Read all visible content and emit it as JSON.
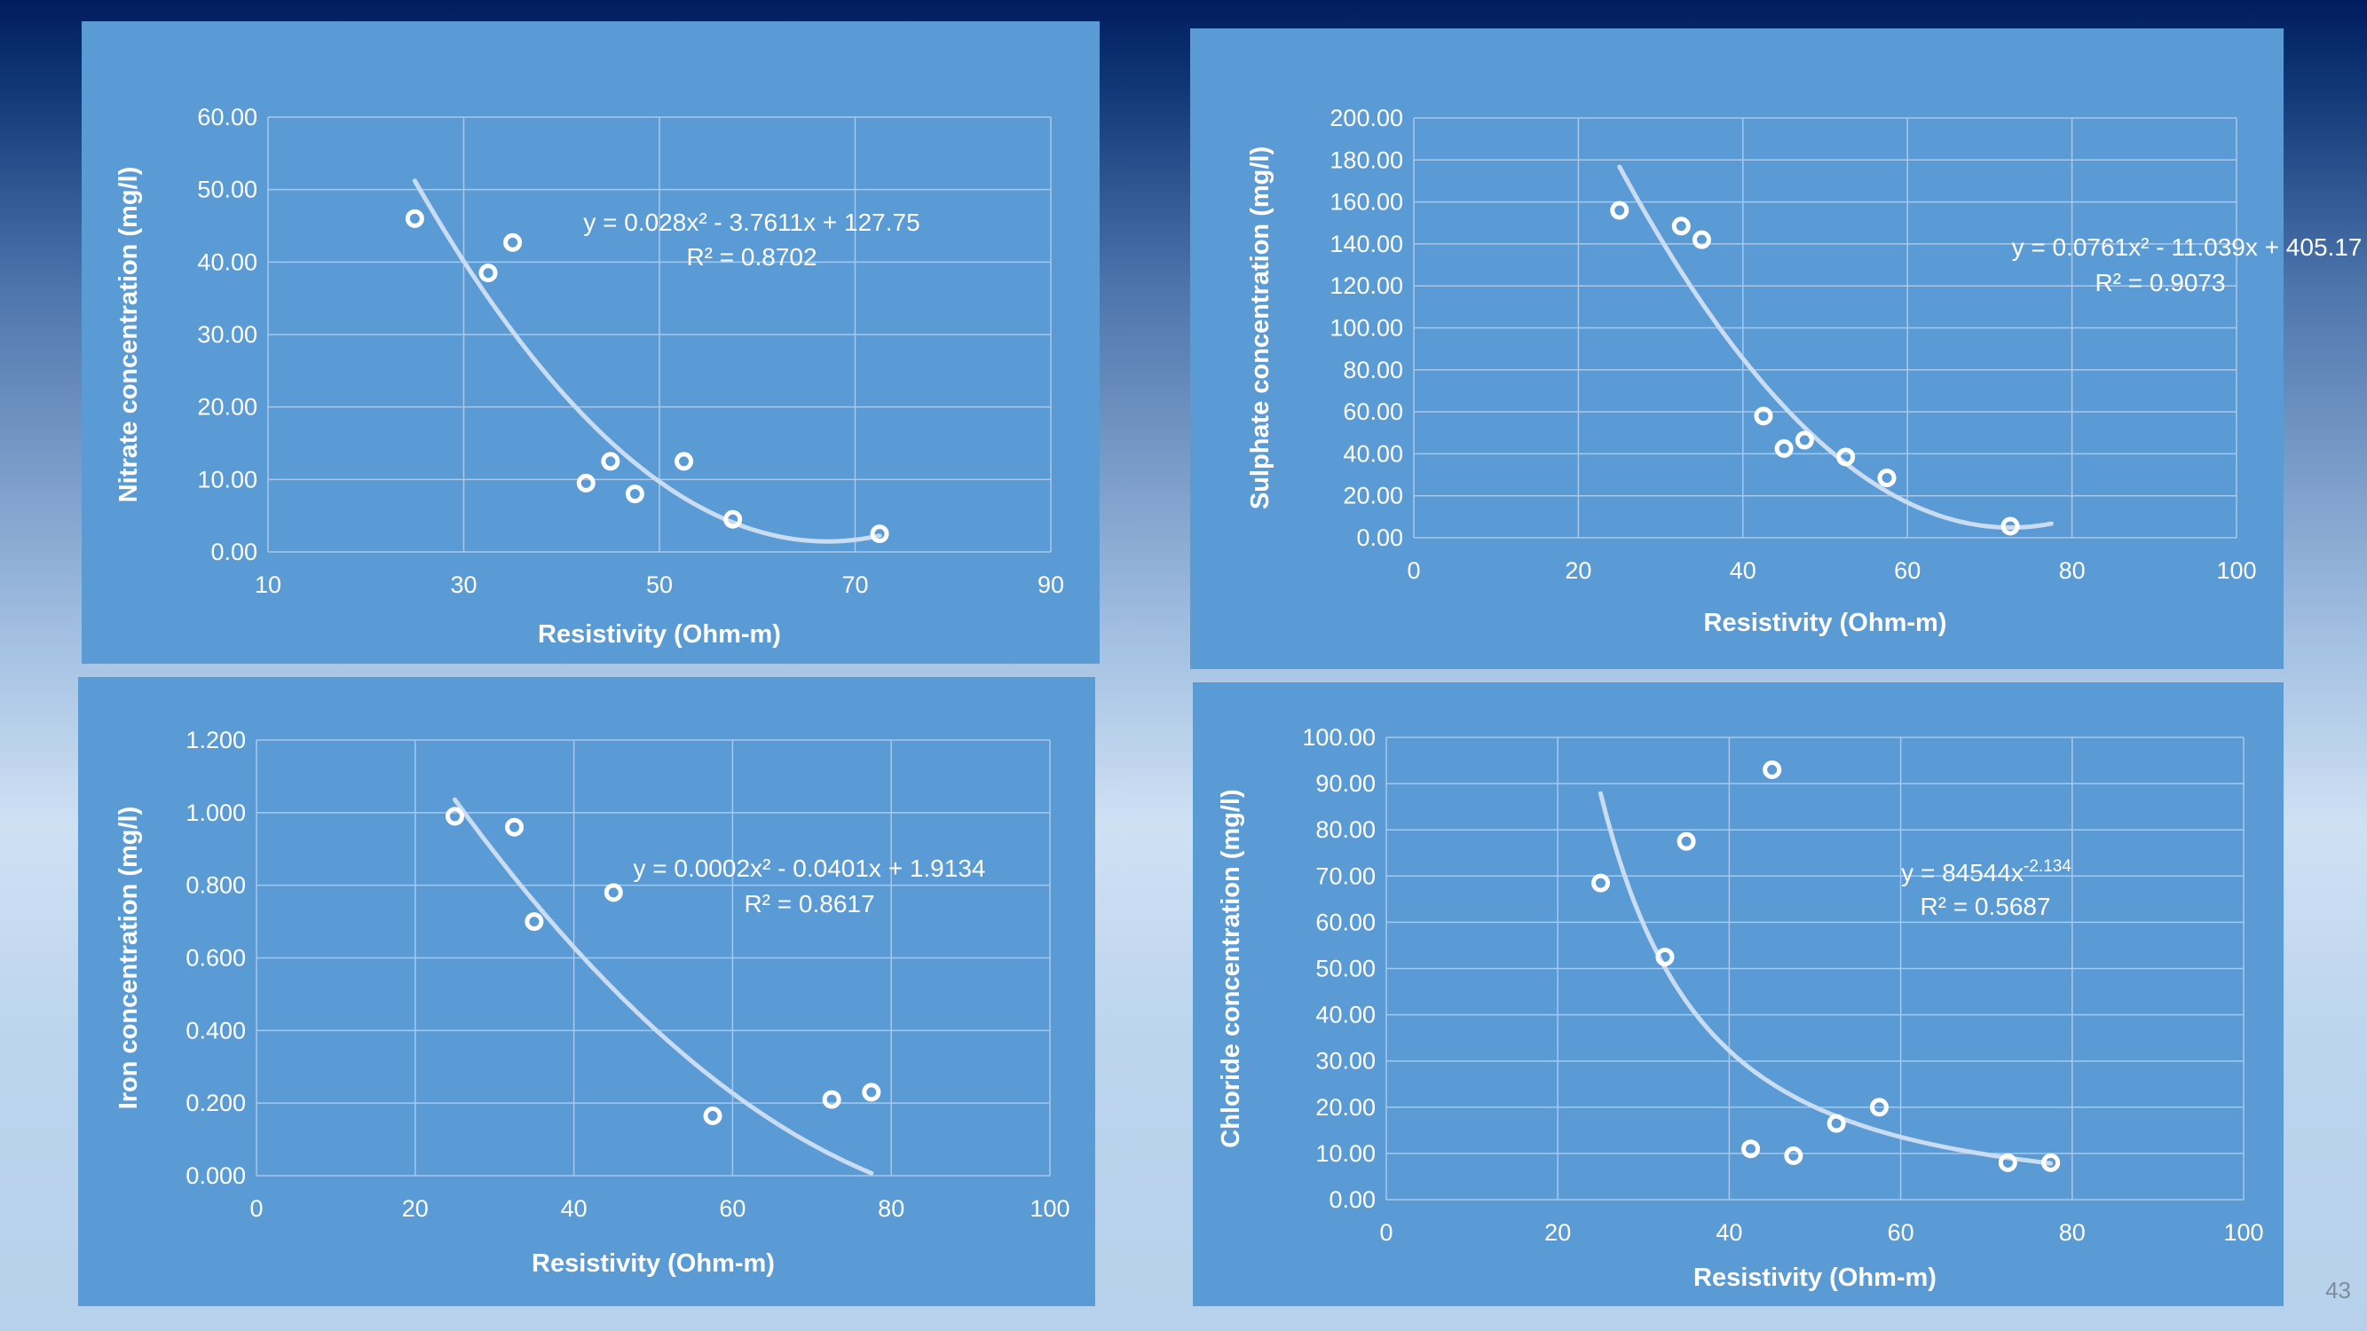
{
  "slide": {
    "page_number": "43"
  },
  "colors": {
    "panel": "#5b9bd5",
    "grid": "#a9c8ea",
    "text": "#ffffff",
    "trend": "#c9dcf2"
  },
  "chart_data": [
    {
      "type": "scatter",
      "xlabel": "Resistivity (Ohm-m)",
      "ylabel": "Nitrate concentration (mg/l)",
      "xlim": [
        10,
        90
      ],
      "ylim": [
        0,
        60
      ],
      "xticks": [
        "10",
        "30",
        "50",
        "70",
        "90"
      ],
      "yticks": [
        "0.00",
        "10.00",
        "20.00",
        "30.00",
        "40.00",
        "50.00",
        "60.00"
      ],
      "grid": true,
      "points": [
        [
          25,
          46
        ],
        [
          32.5,
          38.5
        ],
        [
          35,
          42.7
        ],
        [
          42.5,
          9.5
        ],
        [
          45,
          12.5
        ],
        [
          47.5,
          8
        ],
        [
          52.5,
          12.5
        ],
        [
          57.5,
          4.5
        ],
        [
          72.5,
          2.5
        ]
      ],
      "trendline": {
        "kind": "poly2",
        "coef": [
          0.028,
          -3.7611,
          127.75
        ],
        "x_range": [
          25,
          72.5
        ]
      },
      "equation": "y = 0.028x² - 3.7611x + 127.75",
      "r2": "R² = 0.8702"
    },
    {
      "type": "scatter",
      "xlabel": "Resistivity (Ohm-m)",
      "ylabel": "Sulphate concentration (mg/l)",
      "xlim": [
        0,
        100
      ],
      "ylim": [
        0,
        200
      ],
      "xticks": [
        "0",
        "20",
        "40",
        "60",
        "80",
        "100"
      ],
      "yticks": [
        "0.00",
        "20.00",
        "40.00",
        "60.00",
        "80.00",
        "100.00",
        "120.00",
        "140.00",
        "160.00",
        "180.00",
        "200.00"
      ],
      "grid": true,
      "points": [
        [
          25,
          156
        ],
        [
          32.5,
          148.5
        ],
        [
          35,
          142
        ],
        [
          42.5,
          58
        ],
        [
          45,
          42.5
        ],
        [
          47.5,
          46.5
        ],
        [
          52.5,
          38.5
        ],
        [
          57.5,
          28.5
        ],
        [
          72.5,
          5.5
        ]
      ],
      "trendline": {
        "kind": "poly2",
        "coef": [
          0.0761,
          -11.039,
          405.17
        ],
        "x_range": [
          25,
          77.5
        ]
      },
      "equation": "y = 0.0761x² - 11.039x + 405.17",
      "r2": "R² = 0.9073"
    },
    {
      "type": "scatter",
      "xlabel": "Resistivity (Ohm-m)",
      "ylabel": "Iron concentration (mg/l)",
      "xlim": [
        0,
        100
      ],
      "ylim": [
        0,
        1.2
      ],
      "xticks": [
        "0",
        "20",
        "40",
        "60",
        "80",
        "100"
      ],
      "yticks": [
        "0.000",
        "0.200",
        "0.400",
        "0.600",
        "0.800",
        "1.000",
        "1.200"
      ],
      "grid": true,
      "points": [
        [
          25,
          0.99
        ],
        [
          32.5,
          0.96
        ],
        [
          35,
          0.7
        ],
        [
          45,
          0.78
        ],
        [
          57.5,
          0.165
        ],
        [
          72.5,
          0.21
        ],
        [
          77.5,
          0.23
        ]
      ],
      "trendline": {
        "kind": "poly2",
        "coef": [
          0.0002,
          -0.0401,
          1.9134
        ],
        "x_range": [
          25,
          77.5
        ]
      },
      "equation": "y = 0.0002x² - 0.0401x + 1.9134",
      "r2": "R² = 0.8617"
    },
    {
      "type": "scatter",
      "xlabel": "Resistivity (Ohm-m)",
      "ylabel": "Chloride concentration (mg/l)",
      "xlim": [
        0,
        100
      ],
      "ylim": [
        0,
        100
      ],
      "xticks": [
        "0",
        "20",
        "40",
        "60",
        "80",
        "100"
      ],
      "yticks": [
        "0.00",
        "10.00",
        "20.00",
        "30.00",
        "40.00",
        "50.00",
        "60.00",
        "70.00",
        "80.00",
        "90.00",
        "100.00"
      ],
      "grid": true,
      "points": [
        [
          25,
          68.5
        ],
        [
          32.5,
          52.5
        ],
        [
          35,
          77.5
        ],
        [
          42.5,
          11
        ],
        [
          45,
          93
        ],
        [
          47.5,
          9.5
        ],
        [
          52.5,
          16.5
        ],
        [
          57.5,
          20
        ],
        [
          72.5,
          8
        ],
        [
          77.5,
          8
        ]
      ],
      "trendline": {
        "kind": "power",
        "coef": [
          84544,
          -2.134
        ],
        "x_range": [
          25,
          77.5
        ]
      },
      "equation_base": "y = 84544x",
      "equation_exp": "-2.134",
      "r2": "R² = 0.5687"
    }
  ]
}
